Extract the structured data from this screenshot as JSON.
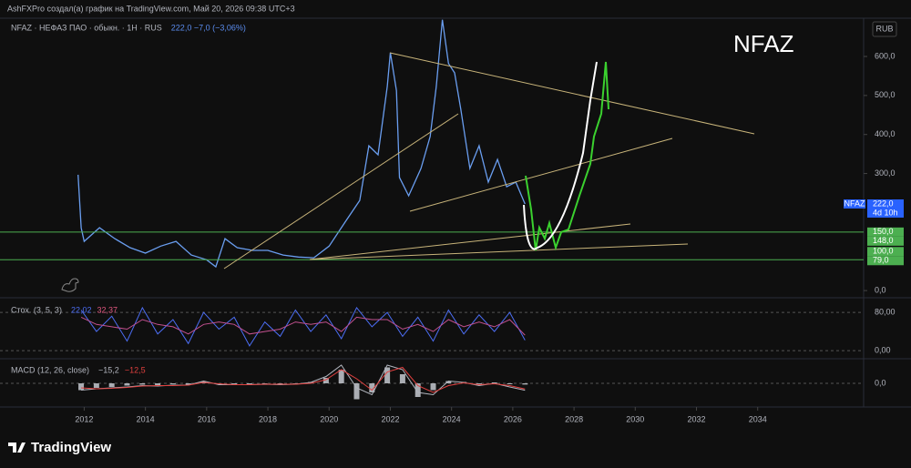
{
  "header": {
    "caption": "AshFXPro создал(а) график на TradingView.com, Май 20, 2026 09:38 UTC+3",
    "watermark": "NFAZ",
    "currency": "RUB"
  },
  "footer": {
    "brand": "TradingView"
  },
  "chart_data": [
    {
      "type": "line",
      "legend": "NFAZ · НЕФАЗ ПАО · обыкн. · 1Н · RUS",
      "legend_values": [
        {
          "text": "222,0 −7,0 (−3,06%)",
          "color": "#5b8def"
        }
      ],
      "color": "#6a9ef0",
      "x": [
        2011.8,
        2011.9,
        2012.0,
        2012.5,
        2013.0,
        2013.5,
        2014.0,
        2014.5,
        2015.0,
        2015.5,
        2016.0,
        2016.3,
        2016.6,
        2017.0,
        2017.5,
        2018.0,
        2018.5,
        2019.0,
        2019.5,
        2020.0,
        2020.5,
        2021.0,
        2021.3,
        2021.6,
        2021.9,
        2022.0,
        2022.2,
        2022.3,
        2022.6,
        2023.0,
        2023.3,
        2023.5,
        2023.7,
        2023.9,
        2024.1,
        2024.3,
        2024.6,
        2024.9,
        2025.2,
        2025.5,
        2025.8,
        2026.1,
        2026.4
      ],
      "values": [
        297,
        161,
        126,
        161,
        133,
        110,
        96,
        114,
        126,
        91,
        79,
        61,
        133,
        110,
        103,
        103,
        91,
        86,
        84,
        114,
        173,
        231,
        371,
        348,
        523,
        610,
        512,
        290,
        243,
        313,
        395,
        523,
        694,
        582,
        558,
        465,
        313,
        371,
        278,
        336,
        266,
        278,
        222
      ],
      "xlim": [
        2009.25,
        2037.46
      ],
      "ylim": [
        -16,
        698
      ],
      "yticks": [
        {
          "value": 0,
          "label": "0,0"
        },
        {
          "value": 300,
          "label": "300,0"
        },
        {
          "value": 400,
          "label": "400,0"
        },
        {
          "value": 500,
          "label": "500,0"
        },
        {
          "value": 600,
          "label": "600,0"
        }
      ],
      "price_labels": [
        {
          "value": 222,
          "label": "222,0",
          "sub": "4d 10h",
          "tag": "NFAZ",
          "color": "#2962ff",
          "hline": false
        },
        {
          "value": 150,
          "label": "150,0",
          "color": "#4caf50",
          "hline": true
        },
        {
          "value": 148,
          "label": "148,0",
          "color": "#4caf50",
          "hline": false
        },
        {
          "value": 100,
          "label": "100,0",
          "color": "#4caf50",
          "hline": false
        },
        {
          "value": 79,
          "label": "79,0",
          "color": "#4caf50",
          "hline": true
        }
      ]
    },
    {
      "type": "line",
      "legend": "Стох. (3, 5, 3)",
      "legend_values": [
        {
          "text": "22,02",
          "color": "#4c6ef5"
        },
        {
          "text": "32,37",
          "color": "#e0577f"
        }
      ],
      "x": [
        2011.9,
        2012.4,
        2012.9,
        2013.4,
        2013.9,
        2014.4,
        2014.9,
        2015.4,
        2015.9,
        2016.4,
        2016.9,
        2017.4,
        2017.9,
        2018.4,
        2018.9,
        2019.4,
        2019.9,
        2020.4,
        2020.9,
        2021.4,
        2021.9,
        2022.4,
        2022.9,
        2023.4,
        2023.9,
        2024.4,
        2024.9,
        2025.4,
        2025.9,
        2026.4
      ],
      "series": [
        {
          "color": "#4c6ef5",
          "values": [
            85,
            40,
            72,
            20,
            90,
            35,
            65,
            15,
            80,
            45,
            70,
            10,
            60,
            30,
            85,
            40,
            75,
            25,
            90,
            50,
            80,
            30,
            70,
            20,
            85,
            35,
            75,
            40,
            80,
            22.02
          ]
        },
        {
          "color": "#c2508f",
          "values": [
            70,
            55,
            50,
            45,
            65,
            55,
            50,
            35,
            55,
            60,
            55,
            35,
            40,
            45,
            60,
            55,
            60,
            40,
            70,
            65,
            65,
            45,
            55,
            40,
            65,
            50,
            60,
            50,
            65,
            32.37
          ]
        }
      ],
      "xlim": [
        2009.25,
        2037.46
      ],
      "ylim": [
        -15,
        105
      ],
      "yticks": [
        {
          "value": 0,
          "label": "0,00"
        },
        {
          "value": 80,
          "label": "80,00"
        }
      ],
      "grid": true
    },
    {
      "type": "bar",
      "legend": "MACD (12, 26, close)",
      "legend_values": [
        {
          "text": "−15,2",
          "color": "#b2b5be"
        },
        {
          "text": "−12,5",
          "color": "#e0403f"
        }
      ],
      "x": [
        2011.9,
        2012.4,
        2012.9,
        2013.4,
        2013.9,
        2014.4,
        2014.9,
        2015.4,
        2015.9,
        2016.4,
        2016.9,
        2017.4,
        2017.9,
        2018.4,
        2018.9,
        2019.4,
        2019.9,
        2020.4,
        2020.9,
        2021.4,
        2021.9,
        2022.4,
        2022.9,
        2023.4,
        2023.9,
        2024.4,
        2024.9,
        2025.4,
        2025.9,
        2026.4
      ],
      "series": [
        {
          "style": "histogram",
          "color": "#d1d4dc",
          "values": [
            -15,
            -10,
            -8,
            -5,
            -3,
            -4,
            -2,
            -3,
            4,
            -2,
            -3,
            -2,
            -1,
            -2,
            -1,
            3,
            12,
            30,
            -35,
            -20,
            35,
            20,
            -30,
            -15,
            5,
            3,
            -3,
            2,
            -2,
            -2.7
          ]
        },
        {
          "style": "line",
          "color": "#b2b5be",
          "values": [
            -15,
            -12,
            -10,
            -8,
            -5,
            -6,
            -4,
            -4,
            5,
            -3,
            -3,
            -3,
            -2,
            -3,
            -2,
            2,
            15,
            40,
            -10,
            -25,
            40,
            30,
            -20,
            -25,
            5,
            2,
            -5,
            0,
            -8,
            -15.2
          ]
        },
        {
          "style": "line",
          "color": "#e0403f",
          "values": [
            -10,
            -12,
            -11,
            -9,
            -6,
            -5,
            -5,
            -4,
            2,
            -1,
            -3,
            -3,
            -2,
            -2,
            -2,
            0,
            8,
            30,
            10,
            -15,
            25,
            35,
            -5,
            -20,
            -5,
            1,
            -3,
            -1,
            -5,
            -12.5
          ]
        }
      ],
      "xlim": [
        2009.25,
        2037.46
      ],
      "ylim": [
        -50,
        50
      ],
      "yticks": [
        {
          "value": 0,
          "label": "0,0"
        }
      ],
      "grid": true,
      "xticks": [
        2012,
        2014,
        2016,
        2018,
        2020,
        2022,
        2024,
        2026,
        2028,
        2030,
        2032,
        2034
      ]
    }
  ]
}
